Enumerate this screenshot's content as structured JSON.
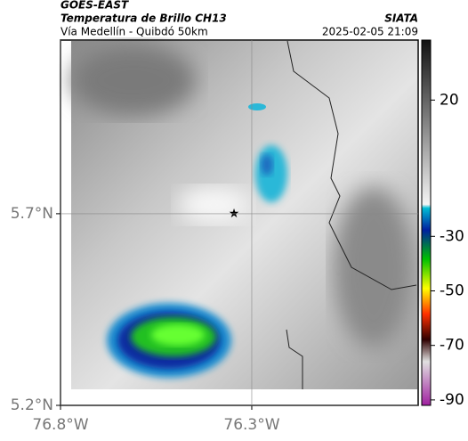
{
  "header": {
    "source": "GOES-EAST",
    "title": "Temperatura de Brillo CH13",
    "subtitle": "Vía Medellín - Quibdó 50km",
    "org": "SIATA",
    "datetime": "2025-02-05 21:09"
  },
  "map": {
    "xlim": [
      -76.8,
      -75.865
    ],
    "ylim": [
      5.2,
      6.153
    ],
    "xticks": [
      {
        "value": -76.8,
        "label": "76.8°W"
      },
      {
        "value": -76.3,
        "label": "76.3°W"
      }
    ],
    "yticks": [
      {
        "value": 5.2,
        "label": "5.2°N"
      },
      {
        "value": 5.7,
        "label": "5.7°N"
      }
    ]
  },
  "colorbar": {
    "lim": [
      -92,
      42
    ],
    "ticks": [
      20,
      -30,
      -50,
      -70,
      -90
    ]
  }
}
